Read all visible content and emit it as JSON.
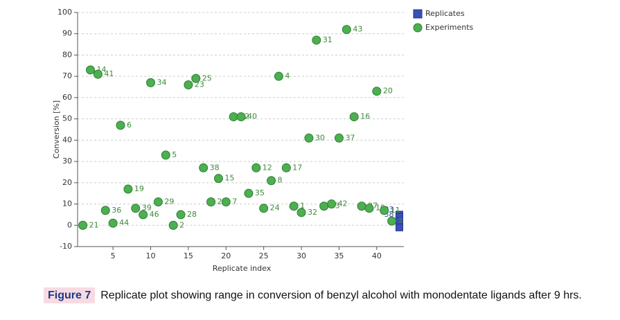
{
  "chart_data": {
    "type": "scatter",
    "y_label": "Conversion [%]",
    "x_label": "Replicate index",
    "xlim": [
      0.3,
      43.6
    ],
    "xticks": [
      5,
      10,
      15,
      20,
      25,
      30,
      35,
      40
    ],
    "ylim": [
      -10,
      100
    ],
    "yticks": [
      -10,
      0,
      10,
      20,
      30,
      40,
      50,
      60,
      70,
      80,
      90,
      100
    ],
    "grid": true,
    "legend": "top-right",
    "series": [
      {
        "name": "Replicates",
        "color": "#3a4fb8",
        "marker": "square",
        "x": [
          43,
          43,
          43,
          43
        ],
        "values": [
          5,
          4,
          2,
          -1
        ],
        "labels": [
          "38",
          "33",
          "5",
          "2"
        ]
      },
      {
        "name": "Experiments",
        "color": "#4caf50",
        "marker": "circle",
        "x": [
          1,
          2,
          3,
          4,
          5,
          6,
          7,
          8,
          9,
          10,
          11,
          12,
          13,
          14,
          15,
          16,
          17,
          18,
          19,
          20,
          21,
          22,
          23,
          24,
          25,
          26,
          27,
          28,
          29,
          30,
          31,
          32,
          33,
          34,
          35,
          36,
          37,
          38,
          39,
          40,
          41,
          42
        ],
        "values": [
          0,
          73,
          71,
          7,
          1,
          47,
          17,
          8,
          5,
          67,
          11,
          33,
          0,
          5,
          66,
          69,
          27,
          11,
          22,
          11,
          51,
          51,
          15,
          27,
          8,
          21,
          70,
          27,
          9,
          6,
          41,
          87,
          9,
          10,
          41,
          92,
          51,
          9,
          8,
          63,
          7,
          2
        ],
        "labels": [
          "21",
          "14",
          "41",
          "36",
          "44",
          "6",
          "19",
          "39",
          "46",
          "34",
          "29",
          "5",
          "2",
          "28",
          "23",
          "25",
          "38",
          "26",
          "15",
          "7",
          "22",
          "40",
          "35",
          "12",
          "24",
          "8",
          "4",
          "17",
          "1",
          "32",
          "30",
          "31",
          "33",
          "42",
          "37",
          "43",
          "16",
          "27",
          "10",
          "20",
          "11",
          "3"
        ]
      }
    ],
    "caption_label": "Figure 7",
    "caption": "Replicate plot showing range in conversion of benzyl alcohol with monodentate ligands after 9 hrs."
  }
}
